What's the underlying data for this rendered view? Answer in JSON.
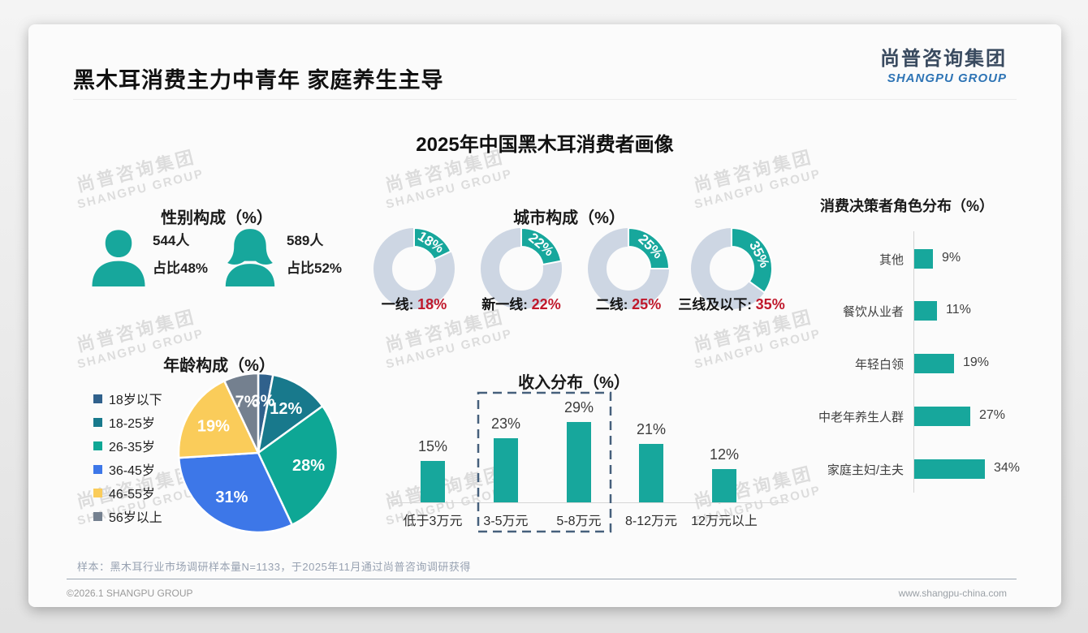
{
  "page": {
    "title": "黑木耳消费主力中青年 家庭养生主导",
    "subtitle": "2025年中国黑木耳消费者画像"
  },
  "logo": {
    "cn": "尚普咨询集团",
    "en": "SHANGPU GROUP"
  },
  "watermark": {
    "line1": "尚普咨询集团",
    "line2": "SHANGPU GROUP"
  },
  "colors": {
    "teal": "#17A79C",
    "donut_base": "#CDD6E3",
    "value_red": "#C0182B",
    "dash_box": "#46607C",
    "logo_cn": "#394A5F",
    "logo_en": "#2E74B5",
    "pie": [
      "#30618C",
      "#18798C",
      "#0EA795",
      "#3D77E8",
      "#FACC5A",
      "#74808F"
    ]
  },
  "chart_data": [
    {
      "id": "gender",
      "type": "pictogram",
      "title": "性别构成（%）",
      "items": [
        {
          "icon": "male-icon",
          "count": "544人",
          "share": "占比48%"
        },
        {
          "icon": "female-icon",
          "count": "589人",
          "share": "占比52%"
        }
      ]
    },
    {
      "id": "city",
      "type": "donut",
      "title": "城市构成（%）",
      "unit": "%",
      "items": [
        {
          "label": "一线",
          "value": 18
        },
        {
          "label": "新一线",
          "value": 22
        },
        {
          "label": "二线",
          "value": 25
        },
        {
          "label": "三线及以下",
          "value": 35
        }
      ]
    },
    {
      "id": "decision",
      "type": "bar",
      "orientation": "horizontal",
      "title": "消费决策者角色分布（%）",
      "unit": "%",
      "categories": [
        "其他",
        "餐饮从业者",
        "年轻白领",
        "中老年养生人群",
        "家庭主妇/主夫"
      ],
      "values": [
        9,
        11,
        19,
        27,
        34
      ]
    },
    {
      "id": "age",
      "type": "pie",
      "title": "年龄构成（%）",
      "unit": "%",
      "categories": [
        "18岁以下",
        "18-25岁",
        "26-35岁",
        "36-45岁",
        "46-55岁",
        "56岁以上"
      ],
      "values": [
        3,
        12,
        28,
        31,
        19,
        7
      ]
    },
    {
      "id": "income",
      "type": "bar",
      "orientation": "vertical",
      "title": "收入分布（%）",
      "unit": "%",
      "categories": [
        "低于3万元",
        "3-5万元",
        "5-8万元",
        "8-12万元",
        "12万元以上"
      ],
      "values": [
        15,
        23,
        29,
        21,
        12
      ],
      "highlight": {
        "categories": [
          "3-5万元",
          "5-8万元"
        ],
        "style": "dashed-box"
      }
    }
  ],
  "footnote": "样本：黑木耳行业市场调研样本量N=1133，于2025年11月通过尚普咨询调研获得",
  "footer": {
    "left": "©2026.1 SHANGPU GROUP",
    "right": "www.shangpu-china.com"
  }
}
